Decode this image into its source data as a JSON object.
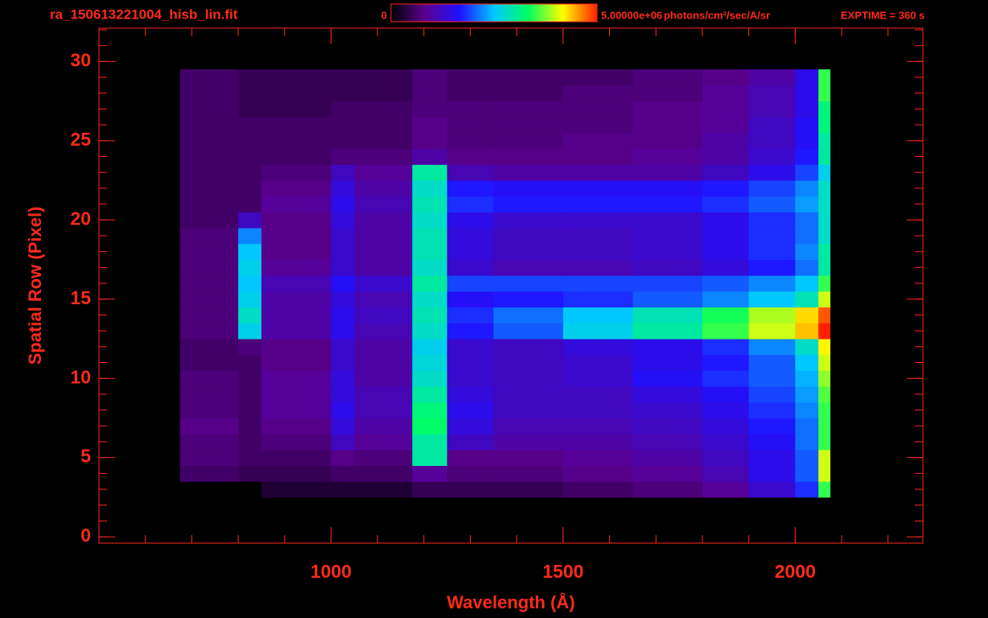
{
  "chart_data": {
    "type": "heatmap",
    "title": "ra_150613221004_hisb_lin.fit",
    "exposure": "EXPTIME = 360 s",
    "x_label": "Wavelength (Å)",
    "y_label": "Spatial Row (Pixel)",
    "xlim": [
      500,
      2275
    ],
    "ylim": [
      -0.4,
      32.1
    ],
    "xticks": [
      1000,
      1500,
      2000
    ],
    "yticks": [
      0,
      5,
      10,
      15,
      20,
      25,
      30
    ],
    "xminor_step": 100,
    "yminor_step": 1,
    "zlim": [
      0,
      5000000
    ],
    "zticks": [
      0,
      {
        "value": 5000000,
        "label": "5.00000e+06"
      }
    ],
    "colorbar_unit": "photons/cm²/sec/A/sr",
    "colormap": [
      "#000000",
      "#5a0090",
      "#2010ff",
      "#00c8ff",
      "#00ff60",
      "#ffff00",
      "#ff2000"
    ],
    "axis_color": "#ff2a1a",
    "x_edges": [
      675,
      800,
      850,
      1000,
      1050,
      1175,
      1250,
      1350,
      1500,
      1650,
      1800,
      1900,
      2000,
      2050,
      2075
    ],
    "y": [
      3,
      4,
      5,
      6,
      7,
      8,
      9,
      10,
      11,
      12,
      13,
      14,
      15,
      16,
      17,
      18,
      19,
      20,
      21,
      22,
      23,
      24,
      25,
      26,
      27,
      28,
      29
    ],
    "z": [
      [
        0,
        0,
        300000.0,
        300000.0,
        300000.0,
        500000.0,
        500000.0,
        500000.0,
        600000.0,
        700000.0,
        900000.0,
        1300000.0,
        1800000.0,
        3500000.0
      ],
      [
        600000.0,
        500000.0,
        500000.0,
        600000.0,
        600000.0,
        900000.0,
        700000.0,
        700000.0,
        800000.0,
        900000.0,
        1100000.0,
        1500000.0,
        2000000.0,
        4000000.0
      ],
      [
        700000.0,
        600000.0,
        600000.0,
        800000.0,
        700000.0,
        3000000.0,
        800000.0,
        800000.0,
        900000.0,
        1000000.0,
        1200000.0,
        1500000.0,
        2000000.0,
        4000000.0
      ],
      [
        700000.0,
        600000.0,
        700000.0,
        1200000.0,
        900000.0,
        3000000.0,
        1200000.0,
        1000000.0,
        1000000.0,
        1100000.0,
        1300000.0,
        1600000.0,
        2100000.0,
        3500000.0
      ],
      [
        800000.0,
        600000.0,
        800000.0,
        1400000.0,
        1000000.0,
        3300000.0,
        1400000.0,
        1100000.0,
        1100000.0,
        1200000.0,
        1400000.0,
        1700000.0,
        2100000.0,
        3500000.0
      ],
      [
        700000.0,
        600000.0,
        900000.0,
        1500000.0,
        1100000.0,
        3200000.0,
        1500000.0,
        1200000.0,
        1200000.0,
        1300000.0,
        1500000.0,
        1800000.0,
        2200000.0,
        3500000.0
      ],
      [
        700000.0,
        600000.0,
        900000.0,
        1400000.0,
        1100000.0,
        3000000.0,
        1400000.0,
        1200000.0,
        1200000.0,
        1400000.0,
        1600000.0,
        1900000.0,
        2300000.0,
        3600000.0
      ],
      [
        700000.0,
        600000.0,
        900000.0,
        1400000.0,
        1000000.0,
        2800000.0,
        1300000.0,
        1200000.0,
        1300000.0,
        1600000.0,
        1800000.0,
        2000000.0,
        2400000.0,
        3800000.0
      ],
      [
        600000.0,
        600000.0,
        800000.0,
        1300000.0,
        1000000.0,
        2700000.0,
        1300000.0,
        1200000.0,
        1300000.0,
        1500000.0,
        1700000.0,
        2000000.0,
        2500000.0,
        4000000.0
      ],
      [
        600000.0,
        700000.0,
        800000.0,
        1300000.0,
        1000000.0,
        2600000.0,
        1300000.0,
        1200000.0,
        1400000.0,
        1500000.0,
        1800000.0,
        2200000.0,
        2800000.0,
        4200000.0
      ],
      [
        700000.0,
        2600000.0,
        1000000.0,
        1500000.0,
        1100000.0,
        2800000.0,
        1700000.0,
        2000000.0,
        2600000.0,
        3000000.0,
        3500000.0,
        4000000.0,
        4400000.0,
        5000000.0
      ],
      [
        700000.0,
        2800000.0,
        1000000.0,
        1500000.0,
        1200000.0,
        2900000.0,
        1800000.0,
        2100000.0,
        2500000.0,
        2900000.0,
        3400000.0,
        3900000.0,
        4300000.0,
        4800000.0
      ],
      [
        700000.0,
        2600000.0,
        1000000.0,
        1400000.0,
        1100000.0,
        2800000.0,
        1600000.0,
        1700000.0,
        1800000.0,
        2000000.0,
        2200000.0,
        2500000.0,
        2900000.0,
        4000000.0
      ],
      [
        700000.0,
        2500000.0,
        1100000.0,
        1600000.0,
        1300000.0,
        3000000.0,
        1900000.0,
        1900000.0,
        1900000.0,
        1900000.0,
        2000000.0,
        2200000.0,
        2500000.0,
        3500000.0
      ],
      [
        700000.0,
        2600000.0,
        900000.0,
        1300000.0,
        1000000.0,
        2800000.0,
        1300000.0,
        1100000.0,
        1100000.0,
        1200000.0,
        1400000.0,
        1700000.0,
        2100000.0,
        3000000.0
      ],
      [
        700000.0,
        2500000.0,
        800000.0,
        1300000.0,
        1000000.0,
        2900000.0,
        1400000.0,
        1200000.0,
        1200000.0,
        1300000.0,
        1500000.0,
        1800000.0,
        2200000.0,
        3000000.0
      ],
      [
        700000.0,
        2200000.0,
        800000.0,
        1300000.0,
        1000000.0,
        2900000.0,
        1400000.0,
        1200000.0,
        1200000.0,
        1300000.0,
        1500000.0,
        1800000.0,
        2100000.0,
        2800000.0
      ],
      [
        600000.0,
        1200000.0,
        800000.0,
        1400000.0,
        1000000.0,
        2800000.0,
        1500000.0,
        1300000.0,
        1300000.0,
        1300000.0,
        1500000.0,
        1800000.0,
        2100000.0,
        2800000.0
      ],
      [
        600000.0,
        600000.0,
        900000.0,
        1500000.0,
        1100000.0,
        2900000.0,
        1800000.0,
        1700000.0,
        1700000.0,
        1700000.0,
        1800000.0,
        2000000.0,
        2300000.0,
        2800000.0
      ],
      [
        600000.0,
        600000.0,
        800000.0,
        1400000.0,
        1000000.0,
        2800000.0,
        1700000.0,
        1600000.0,
        1600000.0,
        1600000.0,
        1700000.0,
        1900000.0,
        2200000.0,
        2800000.0
      ],
      [
        600000.0,
        600000.0,
        700000.0,
        1200000.0,
        900000.0,
        3000000.0,
        1100000.0,
        1000000.0,
        1000000.0,
        1000000.0,
        1200000.0,
        1500000.0,
        1900000.0,
        2600000.0
      ],
      [
        600000.0,
        600000.0,
        600000.0,
        700000.0,
        700000.0,
        1000000.0,
        800000.0,
        800000.0,
        800000.0,
        900000.0,
        1000000.0,
        1300000.0,
        1700000.0,
        3000000.0
      ],
      [
        600000.0,
        600000.0,
        600000.0,
        600000.0,
        600000.0,
        800000.0,
        700000.0,
        700000.0,
        800000.0,
        800000.0,
        1000000.0,
        1200000.0,
        1600000.0,
        3000000.0
      ],
      [
        600000.0,
        600000.0,
        600000.0,
        600000.0,
        600000.0,
        800000.0,
        700000.0,
        700000.0,
        700000.0,
        800000.0,
        900000.0,
        1200000.0,
        1600000.0,
        3200000.0
      ],
      [
        600000.0,
        500000.0,
        500000.0,
        600000.0,
        600000.0,
        700000.0,
        700000.0,
        700000.0,
        700000.0,
        800000.0,
        900000.0,
        1100000.0,
        1500000.0,
        3200000.0
      ],
      [
        600000.0,
        500000.0,
        500000.0,
        500000.0,
        500000.0,
        700000.0,
        600000.0,
        600000.0,
        700000.0,
        700000.0,
        900000.0,
        1100000.0,
        1500000.0,
        3500000.0
      ],
      [
        600000.0,
        500000.0,
        500000.0,
        500000.0,
        500000.0,
        700000.0,
        600000.0,
        600000.0,
        600000.0,
        700000.0,
        800000.0,
        1000000.0,
        1500000.0,
        3500000.0
      ]
    ]
  }
}
